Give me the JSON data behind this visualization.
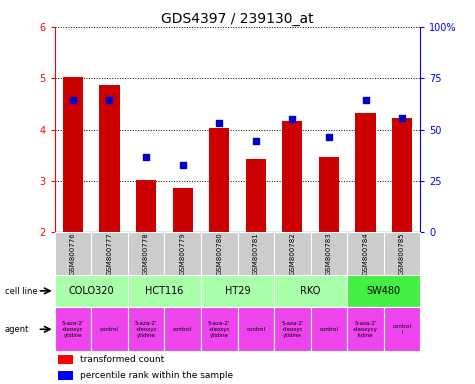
{
  "title": "GDS4397 / 239130_at",
  "samples": [
    "GSM800776",
    "GSM800777",
    "GSM800778",
    "GSM800779",
    "GSM800780",
    "GSM800781",
    "GSM800782",
    "GSM800783",
    "GSM800784",
    "GSM800785"
  ],
  "transformed_counts": [
    5.03,
    4.87,
    3.02,
    2.87,
    4.03,
    3.42,
    4.17,
    3.47,
    4.32,
    4.22
  ],
  "percentile_ranks": [
    4.57,
    4.57,
    3.47,
    3.32,
    4.12,
    3.77,
    4.2,
    3.85,
    4.57,
    4.22
  ],
  "ylim": [
    2.0,
    6.0
  ],
  "yticks_left": [
    2,
    3,
    4,
    5,
    6
  ],
  "yticks_right_pos": [
    2,
    3,
    4,
    5,
    6
  ],
  "yticks_right_labels": [
    "0",
    "25",
    "50",
    "75",
    "100%"
  ],
  "cell_lines": [
    {
      "name": "COLO320",
      "start": 0,
      "end": 2,
      "color": "#aaffaa"
    },
    {
      "name": "HCT116",
      "start": 2,
      "end": 4,
      "color": "#aaffaa"
    },
    {
      "name": "HT29",
      "start": 4,
      "end": 6,
      "color": "#aaffaa"
    },
    {
      "name": "RKO",
      "start": 6,
      "end": 8,
      "color": "#aaffaa"
    },
    {
      "name": "SW480",
      "start": 8,
      "end": 10,
      "color": "#44ee44"
    }
  ],
  "agent_names": [
    "5-aza-2'\n-deoxyc\nytidine",
    "control",
    "5-aza-2'\n-deoxyc\nytidine",
    "control",
    "5-aza-2'\n-deoxyc\nytidine",
    "control",
    "5-aza-2'\n-deoxyc\nytidine",
    "control",
    "5-aza-2'\n-deoxycy\ntidine",
    "control\nl"
  ],
  "bar_color": "#cc0000",
  "dot_color": "#0000cc",
  "bar_width": 0.55,
  "bar_bottom": 2.0,
  "sample_bg_color": "#cccccc",
  "agent_color": "#ee44ee",
  "title_fontsize": 10,
  "tick_fontsize": 7,
  "sample_fontsize": 5,
  "cell_fontsize": 7,
  "agent_fontsize": 4,
  "legend_fontsize": 6.5
}
